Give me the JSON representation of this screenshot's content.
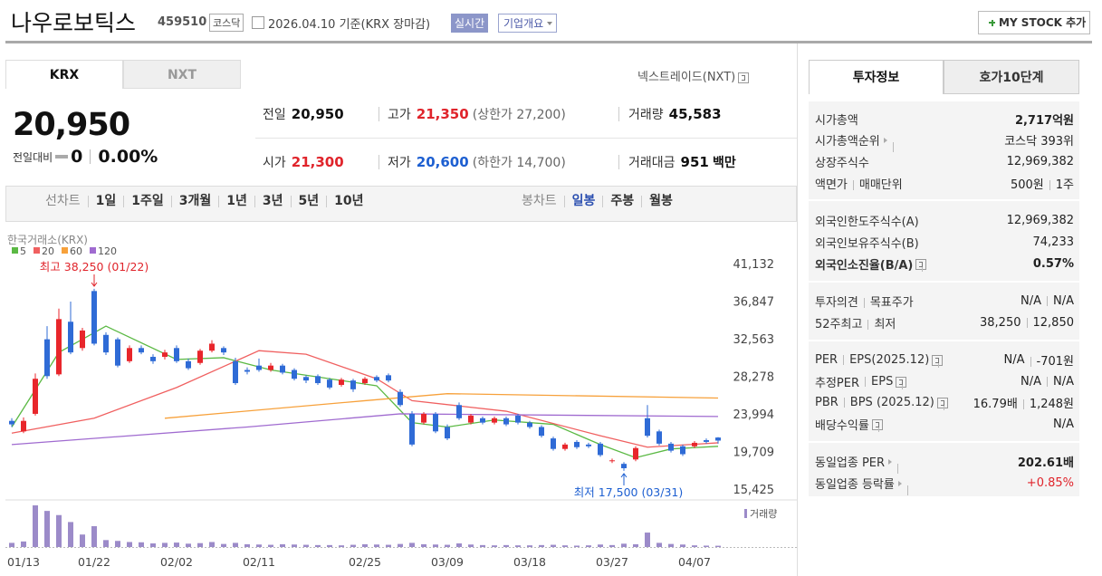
{
  "header": {
    "name": "나우로보틱스",
    "code": "459510",
    "market": "코스닥",
    "date": "2026.04.10",
    "basis": "기준(KRX 장마감)",
    "realtime": "실시간",
    "overview": "기업개요",
    "my_stock": "MY STOCK 추가"
  },
  "market_tabs": [
    "KRX",
    "NXT"
  ],
  "nxt_link": "넥스트레이드(NXT)",
  "price": {
    "current": "20,950",
    "change_label": "전일대비",
    "change": "0",
    "change_rate": "0.00%"
  },
  "quotes": {
    "prev_close": {
      "label": "전일",
      "value": "20,950"
    },
    "high": {
      "label": "고가",
      "value": "21,350",
      "limit": "(상한가 27,200)"
    },
    "volume": {
      "label": "거래량",
      "value": "45,583"
    },
    "open": {
      "label": "시가",
      "value": "21,300"
    },
    "low": {
      "label": "저가",
      "value": "20,600",
      "limit": "(하한가 14,700)"
    },
    "amount": {
      "label": "거래대금",
      "value": "951",
      "unit": "백만"
    }
  },
  "chart_bar": {
    "line_label": "선차트",
    "line_periods": [
      "1일",
      "1주일",
      "3개월",
      "1년",
      "3년",
      "5년",
      "10년"
    ],
    "candle_label": "봉차트",
    "candle_periods": [
      "일봉",
      "주봉",
      "월봉"
    ]
  },
  "info_tabs": [
    "투자정보",
    "호가10단계"
  ],
  "info": [
    {
      "labels": [
        "시가총액"
      ],
      "values": [
        "2,717억원"
      ]
    },
    {
      "labels": [
        "시가총액순위"
      ],
      "values": [
        "코스닥 393위"
      ]
    },
    {
      "labels": [
        "상장주식수"
      ],
      "values": [
        "12,969,382"
      ]
    },
    {
      "labels": [
        "액면가",
        "매매단위"
      ],
      "values": [
        "500원",
        "1주"
      ]
    },
    {
      "labels": [
        "외국인한도주식수(A)"
      ],
      "values": [
        "12,969,382"
      ]
    },
    {
      "labels": [
        "외국인보유주식수(B)"
      ],
      "values": [
        "74,233"
      ]
    },
    {
      "labels": [
        "외국인소진율(B/A)"
      ],
      "values": [
        "0.57%"
      ]
    },
    {
      "labels": [
        "투자의견",
        "목표주가"
      ],
      "values": [
        "N/A",
        "N/A"
      ]
    },
    {
      "labels": [
        "52주최고",
        "최저"
      ],
      "values": [
        "38,250",
        "12,850"
      ]
    },
    {
      "labels": [
        "PER",
        "EPS(2025.12)"
      ],
      "values": [
        "N/A",
        "-701원"
      ]
    },
    {
      "labels": [
        "추정PER",
        "EPS"
      ],
      "values": [
        "N/A",
        "N/A"
      ]
    },
    {
      "labels": [
        "PBR",
        "BPS (2025.12)"
      ],
      "values": [
        "16.79배",
        "1,248원"
      ]
    },
    {
      "labels": [
        "배당수익률"
      ],
      "values": [
        "N/A"
      ]
    },
    {
      "labels": [
        "동일업종 PER"
      ],
      "values": [
        "202.61배"
      ]
    },
    {
      "labels": [
        "동일업종 등락률"
      ],
      "values": [
        "+0.85%"
      ]
    }
  ],
  "chart_data": {
    "type": "candlestick",
    "source": "한국거래소(KRX)",
    "categories": [
      null,
      "01/13",
      null,
      null,
      null,
      null,
      null,
      "01/22",
      null,
      null,
      null,
      null,
      null,
      null,
      "02/02",
      null,
      null,
      null,
      null,
      null,
      null,
      "02/11",
      null,
      null,
      null,
      null,
      null,
      null,
      null,
      null,
      "02/25",
      null,
      null,
      null,
      null,
      null,
      null,
      "03/09",
      null,
      null,
      null,
      null,
      null,
      null,
      "03/18",
      null,
      null,
      null,
      null,
      null,
      null,
      "03/27",
      null,
      null,
      null,
      null,
      null,
      null,
      "04/07",
      null,
      null
    ],
    "ohlc": [
      [
        23200,
        23500,
        22500,
        22800
      ],
      [
        22000,
        23600,
        21800,
        23200
      ],
      [
        24000,
        28600,
        23800,
        28000
      ],
      [
        32500,
        34000,
        28000,
        28300
      ],
      [
        28500,
        36000,
        28300,
        34800
      ],
      [
        34500,
        36800,
        30800,
        31000
      ],
      [
        31500,
        33800,
        31200,
        33500
      ],
      [
        38000,
        38250,
        31800,
        32000
      ],
      [
        33000,
        33300,
        30700,
        31000
      ],
      [
        32500,
        32700,
        29300,
        29500
      ],
      [
        30000,
        31800,
        29800,
        31500
      ],
      [
        31500,
        31800,
        30800,
        31000
      ],
      [
        30500,
        30800,
        29700,
        30000
      ],
      [
        30500,
        31300,
        30200,
        31000
      ],
      [
        31500,
        31800,
        29800,
        30000
      ],
      [
        30000,
        30300,
        29000,
        29200
      ],
      [
        29800,
        31400,
        29600,
        31200
      ],
      [
        31200,
        32400,
        31000,
        32000
      ],
      [
        31500,
        31700,
        30700,
        31000
      ],
      [
        30000,
        30400,
        27300,
        27500
      ],
      [
        29000,
        29300,
        28500,
        28800
      ],
      [
        29500,
        30300,
        28800,
        29000
      ],
      [
        29000,
        29800,
        28800,
        29500
      ],
      [
        29500,
        29700,
        28500,
        28700
      ],
      [
        29000,
        29200,
        27800,
        28000
      ],
      [
        28200,
        28400,
        27500,
        27800
      ],
      [
        28300,
        28500,
        27300,
        27500
      ],
      [
        27900,
        28100,
        26800,
        27000
      ],
      [
        27300,
        28100,
        27100,
        27900
      ],
      [
        27800,
        28000,
        26500,
        26800
      ],
      [
        27500,
        28200,
        27300,
        28000
      ],
      [
        28200,
        28400,
        27600,
        27800
      ],
      [
        28400,
        28600,
        27600,
        27800
      ],
      [
        26500,
        26800,
        24800,
        25000
      ],
      [
        24000,
        24300,
        20300,
        20500
      ],
      [
        23000,
        24200,
        22800,
        24000
      ],
      [
        24000,
        24200,
        21800,
        22000
      ],
      [
        22500,
        22800,
        21000,
        21200
      ],
      [
        25000,
        25300,
        23300,
        23500
      ],
      [
        23000,
        24000,
        22800,
        23800
      ],
      [
        23500,
        23700,
        22800,
        23000
      ],
      [
        23000,
        23700,
        22800,
        23500
      ],
      [
        23500,
        23700,
        22600,
        22800
      ],
      [
        23800,
        24000,
        22800,
        23000
      ],
      [
        23000,
        23200,
        22300,
        22500
      ],
      [
        22500,
        22700,
        21300,
        21500
      ],
      [
        21200,
        21400,
        19800,
        20000
      ],
      [
        20000,
        20700,
        19800,
        20500
      ],
      [
        20800,
        21000,
        20000,
        20200
      ],
      [
        20500,
        20700,
        20100,
        20300
      ],
      [
        20600,
        20800,
        19100,
        19300
      ],
      [
        18600,
        18900,
        18400,
        18700
      ],
      [
        18300,
        18500,
        17500,
        17800
      ],
      [
        18800,
        20300,
        18600,
        20100
      ],
      [
        23500,
        25000,
        21300,
        21500
      ],
      [
        22000,
        22200,
        20400,
        20600
      ],
      [
        20600,
        20800,
        19600,
        19800
      ],
      [
        20300,
        20500,
        19200,
        19400
      ],
      [
        20300,
        20900,
        20100,
        20700
      ],
      [
        21000,
        21200,
        20600,
        20800
      ],
      [
        21300,
        21350,
        20600,
        20950
      ]
    ],
    "up_color": "#e8262b",
    "down_color": "#2f6bd6",
    "moving_averages": [
      {
        "name": "5",
        "color": "#5bb944",
        "x": [
          0,
          4,
          8,
          14,
          18,
          22,
          28,
          31,
          34,
          37,
          41,
          46,
          50,
          53,
          56,
          60
        ],
        "values": [
          22500,
          31000,
          34000,
          30200,
          30400,
          29000,
          27800,
          27200,
          23000,
          22500,
          23300,
          22800,
          20500,
          19000,
          20000,
          20300
        ]
      },
      {
        "name": "20",
        "color": "#f06060",
        "x": [
          0,
          7,
          14,
          21,
          25,
          31,
          34,
          42,
          50,
          54,
          60
        ],
        "values": [
          21800,
          23500,
          27000,
          31200,
          30800,
          28000,
          25500,
          24300,
          21500,
          20200,
          20700
        ]
      },
      {
        "name": "60",
        "color": "#f7a13b",
        "x": [
          13,
          30,
          37,
          60
        ],
        "values": [
          23500,
          25500,
          26300,
          25800
        ]
      },
      {
        "name": "120",
        "color": "#a06bd0",
        "x": [
          0,
          20,
          33,
          60
        ],
        "values": [
          20500,
          22500,
          24000,
          23700
        ]
      }
    ],
    "ylim": [
      14600,
      44540
    ],
    "yticks": [
      {
        "value": 41132,
        "label": "41,132"
      },
      {
        "value": 36847,
        "label": "36,847"
      },
      {
        "value": 32563,
        "label": "32,563"
      },
      {
        "value": 28278,
        "label": "28,278"
      },
      {
        "value": 23994,
        "label": "23,994"
      },
      {
        "value": 19709,
        "label": "19,709"
      },
      {
        "value": 15425,
        "label": "15,425"
      }
    ],
    "max_label": "최고 38,250 (01/22)",
    "max_index": 7,
    "min_label": "최저 17,500 (03/31)",
    "min_index": 52,
    "volume_label": "거래량",
    "volume_color": "#9c8bc9",
    "volume": [
      150000,
      200000,
      1500000,
      1300000,
      1150000,
      900000,
      450000,
      750000,
      250000,
      220000,
      180000,
      170000,
      130000,
      150000,
      160000,
      120000,
      140000,
      180000,
      110000,
      150000,
      100000,
      90000,
      80000,
      100000,
      90000,
      80000,
      70000,
      70000,
      60000,
      80000,
      100000,
      90000,
      80000,
      110000,
      150000,
      100000,
      90000,
      80000,
      130000,
      90000,
      70000,
      60000,
      70000,
      60000,
      60000,
      70000,
      80000,
      60000,
      50000,
      60000,
      90000,
      70000,
      120000,
      100000,
      520000,
      150000,
      110000,
      90000,
      60000,
      50000,
      45583
    ]
  }
}
